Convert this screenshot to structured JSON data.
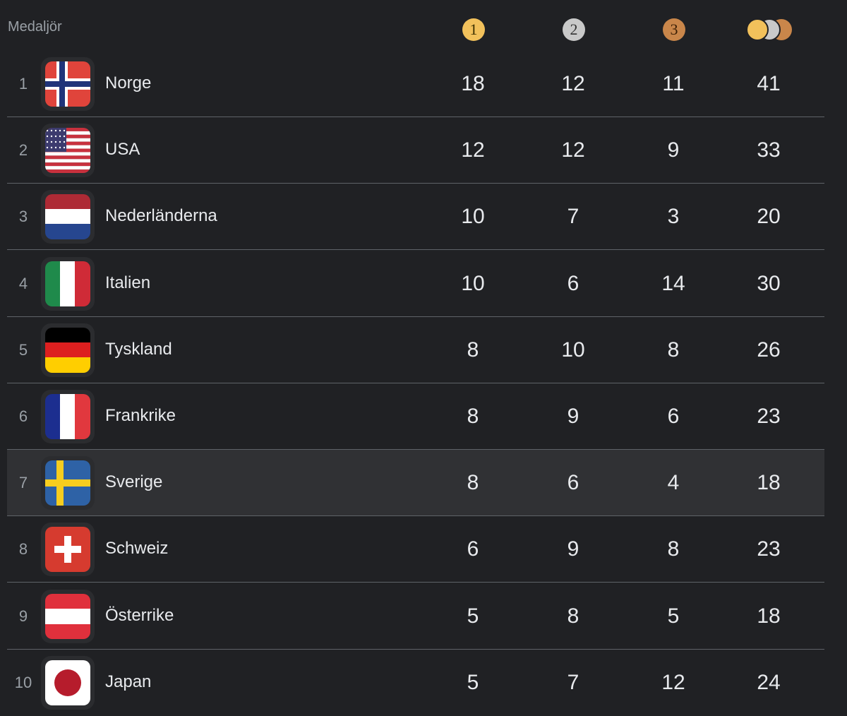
{
  "header": {
    "title": "Medaljör",
    "columns": [
      "1",
      "2",
      "3"
    ]
  },
  "table": {
    "rows": [
      [
        1,
        "Norge",
        18,
        12,
        11,
        41
      ],
      [
        2,
        "USA",
        12,
        12,
        9,
        33
      ],
      [
        3,
        "Nederländerna",
        10,
        7,
        3,
        20
      ],
      [
        4,
        "Italien",
        10,
        6,
        14,
        30
      ],
      [
        5,
        "Tyskland",
        8,
        10,
        8,
        26
      ],
      [
        6,
        "Frankrike",
        8,
        9,
        6,
        23
      ],
      [
        7,
        "Sverige",
        8,
        6,
        4,
        18
      ],
      [
        8,
        "Schweiz",
        6,
        9,
        8,
        23
      ],
      [
        9,
        "Österrike",
        5,
        8,
        5,
        18
      ],
      [
        10,
        "Japan",
        5,
        7,
        12,
        24
      ]
    ]
  }
}
